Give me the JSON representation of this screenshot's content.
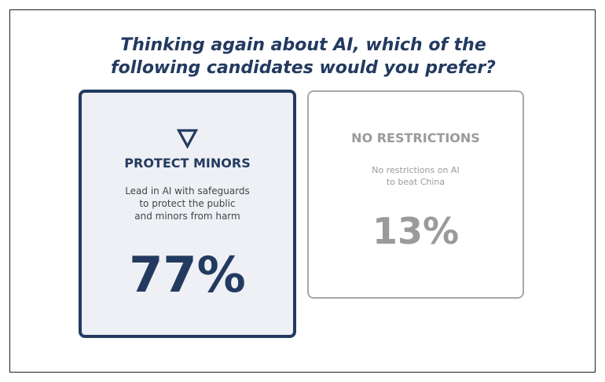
{
  "chart_data": {
    "type": "bar",
    "title": "Thinking again about AI, which of the following candidates would you prefer?",
    "title_lines": [
      "Thinking again about AI, which of the",
      "following candidates would you prefer?"
    ],
    "categories": [
      "PROTECT MINORS",
      "NO RESTRICTIONS"
    ],
    "values": [
      77,
      13
    ],
    "value_labels": [
      "77%",
      "13%"
    ],
    "options": [
      {
        "label": "PROTECT MINORS",
        "description_lines": [
          "Lead in AI with safeguards",
          "to protect the public",
          "and minors from harm"
        ],
        "value": 77,
        "value_label": "77%",
        "highlighted": true,
        "icon": "down-triangle-icon",
        "color": "#233a60"
      },
      {
        "label": "NO RESTRICTIONS",
        "description_lines": [
          "No restrictions on AI",
          "to beat China"
        ],
        "value": 13,
        "value_label": "13%",
        "highlighted": false,
        "color": "#9a9a9a"
      }
    ],
    "colors": {
      "accent": "#233a60",
      "muted": "#9a9a9a",
      "highlight_bg": "#eef0f5"
    }
  }
}
